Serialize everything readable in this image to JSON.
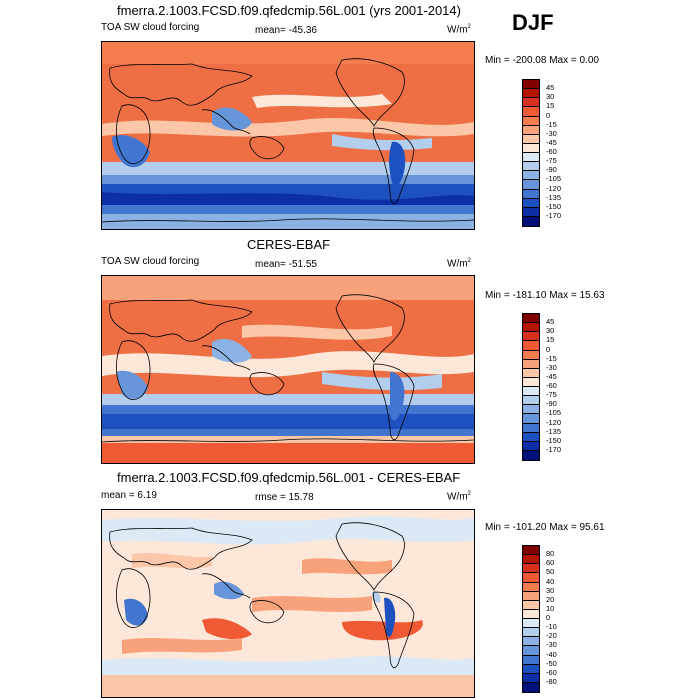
{
  "season": "DJF",
  "colors": {
    "ocean_warm": "#ef6f45",
    "coast": "#000000"
  },
  "panels": [
    {
      "title": "fmerra.2.1003.FCSD.f09.qfedcmip.56L.001 (yrs 2001-2014)",
      "left_label": "TOA SW cloud forcing",
      "center_label": "mean= -45.36",
      "units": "W/m",
      "units_sup": "2",
      "minmax": "Min = -200.08 Max =   0.00",
      "colorbar": {
        "labels": [
          "45",
          "30",
          "15",
          "0",
          "-15",
          "-30",
          "-45",
          "-60",
          "-75",
          "-90",
          "-105",
          "-120",
          "-135",
          "-150",
          "-170"
        ],
        "colors": [
          "#7f0000",
          "#b41500",
          "#d7301f",
          "#ef5a35",
          "#f47d4f",
          "#f8a27c",
          "#fbc7a8",
          "#fde7d8",
          "#dbe8f6",
          "#b3cdec",
          "#8cb2e3",
          "#6695d9",
          "#4175cf",
          "#1e51c0",
          "#0d2fa6",
          "#00127a"
        ]
      }
    },
    {
      "title": "CERES-EBAF",
      "left_label": "TOA SW cloud forcing",
      "center_label": "mean= -51.55",
      "units": "W/m",
      "units_sup": "2",
      "minmax": "Min = -181.10 Max =  15.63",
      "colorbar": {
        "labels": [
          "45",
          "30",
          "15",
          "0",
          "-15",
          "-30",
          "-45",
          "-60",
          "-75",
          "-90",
          "-105",
          "-120",
          "-135",
          "-150",
          "-170"
        ],
        "colors": [
          "#7f0000",
          "#b41500",
          "#d7301f",
          "#ef5a35",
          "#f47d4f",
          "#f8a27c",
          "#fbc7a8",
          "#fde7d8",
          "#dbe8f6",
          "#b3cdec",
          "#8cb2e3",
          "#6695d9",
          "#4175cf",
          "#1e51c0",
          "#0d2fa6",
          "#00127a"
        ]
      }
    },
    {
      "title": "fmerra.2.1003.FCSD.f09.qfedcmip.56L.001 - CERES-EBAF",
      "left_label": "mean =   6.19",
      "center_label": "rmse =  15.78",
      "units": "W/m",
      "units_sup": "2",
      "minmax": "Min = -101.20 Max =  95.61",
      "colorbar": {
        "labels": [
          "80",
          "60",
          "50",
          "40",
          "30",
          "20",
          "10",
          "0",
          "-10",
          "-20",
          "-30",
          "-40",
          "-50",
          "-60",
          "-80"
        ],
        "colors": [
          "#7f0000",
          "#b41500",
          "#d7301f",
          "#ef5a35",
          "#f47d4f",
          "#f8a27c",
          "#fbc7a8",
          "#fde7d8",
          "#dbe8f6",
          "#b3cdec",
          "#8cb2e3",
          "#6695d9",
          "#4175cf",
          "#1e51c0",
          "#0d2fa6",
          "#00127a"
        ]
      }
    }
  ]
}
